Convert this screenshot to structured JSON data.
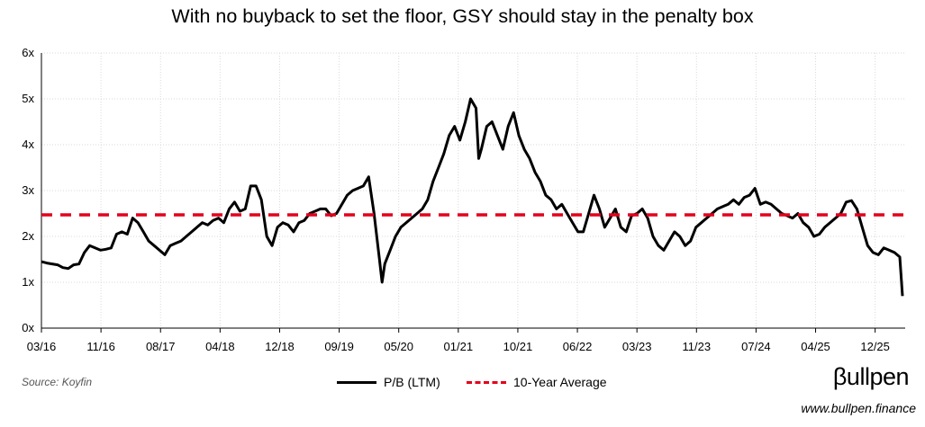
{
  "title": "With no buyback to set the floor, GSY should stay in the penalty box",
  "chart_data": {
    "type": "line",
    "title": "With no buyback to set the floor, GSY should stay in the penalty box",
    "xlabel": "",
    "ylabel": "",
    "ylim": [
      0,
      6
    ],
    "yticks": [
      "0x",
      "1x",
      "2x",
      "3x",
      "4x",
      "5x",
      "6x"
    ],
    "xticks": [
      "03/16",
      "11/16",
      "08/17",
      "04/18",
      "12/18",
      "09/19",
      "05/20",
      "01/21",
      "10/21",
      "06/22",
      "03/23",
      "11/23",
      "07/24",
      "04/25",
      "12/25"
    ],
    "xlim": [
      "03/16",
      "02/26"
    ],
    "grid": true,
    "series": [
      {
        "name": "P/B (LTM)",
        "color": "#000000",
        "points": [
          [
            0,
            1.45
          ],
          [
            1,
            1.42
          ],
          [
            2,
            1.4
          ],
          [
            3,
            1.38
          ],
          [
            4,
            1.32
          ],
          [
            5,
            1.3
          ],
          [
            6,
            1.38
          ],
          [
            7,
            1.4
          ],
          [
            8,
            1.65
          ],
          [
            9,
            1.8
          ],
          [
            10,
            1.75
          ],
          [
            11,
            1.7
          ],
          [
            12,
            1.72
          ],
          [
            13,
            1.75
          ],
          [
            14,
            2.05
          ],
          [
            15,
            2.1
          ],
          [
            16,
            2.05
          ],
          [
            17,
            2.4
          ],
          [
            18,
            2.3
          ],
          [
            19,
            2.1
          ],
          [
            20,
            1.9
          ],
          [
            21,
            1.8
          ],
          [
            22,
            1.7
          ],
          [
            23,
            1.6
          ],
          [
            24,
            1.8
          ],
          [
            25,
            1.85
          ],
          [
            26,
            1.9
          ],
          [
            27,
            2.0
          ],
          [
            28,
            2.1
          ],
          [
            29,
            2.2
          ],
          [
            30,
            2.3
          ],
          [
            31,
            2.25
          ],
          [
            32,
            2.35
          ],
          [
            33,
            2.4
          ],
          [
            34,
            2.3
          ],
          [
            35,
            2.6
          ],
          [
            36,
            2.75
          ],
          [
            37,
            2.55
          ],
          [
            38,
            2.6
          ],
          [
            39,
            3.1
          ],
          [
            40,
            3.1
          ],
          [
            41,
            2.8
          ],
          [
            42,
            2.0
          ],
          [
            43,
            1.8
          ],
          [
            44,
            2.2
          ],
          [
            45,
            2.3
          ],
          [
            46,
            2.25
          ],
          [
            47,
            2.1
          ],
          [
            48,
            2.3
          ],
          [
            49,
            2.35
          ],
          [
            50,
            2.5
          ],
          [
            51,
            2.55
          ],
          [
            52,
            2.6
          ],
          [
            53,
            2.6
          ],
          [
            54,
            2.45
          ],
          [
            55,
            2.5
          ],
          [
            56,
            2.7
          ],
          [
            57,
            2.9
          ],
          [
            58,
            3.0
          ],
          [
            59,
            3.05
          ],
          [
            60,
            3.1
          ],
          [
            61,
            3.3
          ],
          [
            62,
            2.5
          ],
          [
            63,
            1.5
          ],
          [
            63.5,
            1.0
          ],
          [
            64,
            1.4
          ],
          [
            65,
            1.7
          ],
          [
            66,
            2.0
          ],
          [
            67,
            2.2
          ],
          [
            68,
            2.3
          ],
          [
            69,
            2.4
          ],
          [
            70,
            2.5
          ],
          [
            71,
            2.6
          ],
          [
            72,
            2.8
          ],
          [
            73,
            3.2
          ],
          [
            74,
            3.5
          ],
          [
            75,
            3.8
          ],
          [
            76,
            4.2
          ],
          [
            77,
            4.4
          ],
          [
            78,
            4.1
          ],
          [
            79,
            4.5
          ],
          [
            80,
            5.0
          ],
          [
            81,
            4.8
          ],
          [
            81.5,
            3.7
          ],
          [
            82,
            3.9
          ],
          [
            83,
            4.4
          ],
          [
            84,
            4.5
          ],
          [
            85,
            4.2
          ],
          [
            86,
            3.9
          ],
          [
            87,
            4.4
          ],
          [
            88,
            4.7
          ],
          [
            89,
            4.2
          ],
          [
            90,
            3.9
          ],
          [
            91,
            3.7
          ],
          [
            92,
            3.4
          ],
          [
            93,
            3.2
          ],
          [
            94,
            2.9
          ],
          [
            95,
            2.8
          ],
          [
            96,
            2.6
          ],
          [
            97,
            2.7
          ],
          [
            98,
            2.5
          ],
          [
            99,
            2.3
          ],
          [
            100,
            2.1
          ],
          [
            101,
            2.1
          ],
          [
            102,
            2.5
          ],
          [
            103,
            2.9
          ],
          [
            104,
            2.6
          ],
          [
            105,
            2.2
          ],
          [
            106,
            2.4
          ],
          [
            107,
            2.6
          ],
          [
            108,
            2.2
          ],
          [
            109,
            2.1
          ],
          [
            110,
            2.45
          ],
          [
            111,
            2.5
          ],
          [
            112,
            2.6
          ],
          [
            113,
            2.4
          ],
          [
            114,
            2.0
          ],
          [
            115,
            1.8
          ],
          [
            116,
            1.7
          ],
          [
            117,
            1.9
          ],
          [
            118,
            2.1
          ],
          [
            119,
            2.0
          ],
          [
            120,
            1.8
          ],
          [
            121,
            1.9
          ],
          [
            122,
            2.2
          ],
          [
            123,
            2.3
          ],
          [
            124,
            2.4
          ],
          [
            125,
            2.5
          ],
          [
            126,
            2.6
          ],
          [
            127,
            2.65
          ],
          [
            128,
            2.7
          ],
          [
            129,
            2.8
          ],
          [
            130,
            2.7
          ],
          [
            131,
            2.85
          ],
          [
            132,
            2.9
          ],
          [
            133,
            3.05
          ],
          [
            134,
            2.7
          ],
          [
            135,
            2.75
          ],
          [
            136,
            2.7
          ],
          [
            137,
            2.6
          ],
          [
            138,
            2.5
          ],
          [
            139,
            2.45
          ],
          [
            140,
            2.4
          ],
          [
            141,
            2.5
          ],
          [
            142,
            2.3
          ],
          [
            143,
            2.2
          ],
          [
            144,
            2.0
          ],
          [
            145,
            2.05
          ],
          [
            146,
            2.2
          ],
          [
            147,
            2.3
          ],
          [
            148,
            2.4
          ],
          [
            149,
            2.5
          ],
          [
            150,
            2.75
          ],
          [
            151,
            2.78
          ],
          [
            152,
            2.6
          ],
          [
            153,
            2.2
          ],
          [
            154,
            1.8
          ],
          [
            155,
            1.65
          ],
          [
            156,
            1.6
          ],
          [
            157,
            1.75
          ],
          [
            158,
            1.7
          ],
          [
            159,
            1.65
          ],
          [
            160,
            1.55
          ],
          [
            160.5,
            0.7
          ]
        ]
      },
      {
        "name": "10-Year Average",
        "color": "#e3001b",
        "style": "dashed",
        "values": [
          2.47,
          2.47
        ]
      }
    ],
    "legend": "bottom-center"
  },
  "legend": {
    "series1": "P/B (LTM)",
    "series2": "10-Year Average"
  },
  "source": "Source: Koyfin",
  "brand": "βullpen",
  "website": "www.bullpen.finance"
}
